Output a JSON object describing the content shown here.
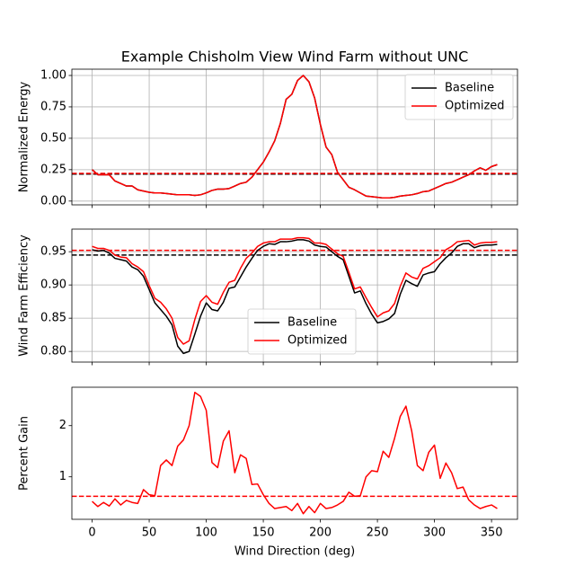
{
  "chart_data": [
    {
      "type": "line",
      "title": "Example Chisholm View Wind Farm without UNC",
      "y_label": "Normalized Energy",
      "x": [
        0,
        5,
        10,
        15,
        20,
        25,
        30,
        35,
        40,
        45,
        50,
        55,
        60,
        65,
        70,
        75,
        80,
        85,
        90,
        95,
        100,
        105,
        110,
        115,
        120,
        125,
        130,
        135,
        140,
        145,
        150,
        155,
        160,
        165,
        170,
        175,
        180,
        185,
        190,
        195,
        200,
        205,
        210,
        215,
        220,
        225,
        230,
        235,
        240,
        245,
        250,
        255,
        260,
        265,
        270,
        275,
        280,
        285,
        290,
        295,
        300,
        305,
        310,
        315,
        320,
        325,
        330,
        335,
        340,
        345,
        350,
        355
      ],
      "series": [
        {
          "name": "Baseline",
          "color": "#000000",
          "values": [
            0.25,
            0.21,
            0.21,
            0.21,
            0.16,
            0.14,
            0.12,
            0.12,
            0.09,
            0.08,
            0.07,
            0.065,
            0.065,
            0.06,
            0.055,
            0.05,
            0.05,
            0.05,
            0.045,
            0.05,
            0.065,
            0.085,
            0.095,
            0.095,
            0.1,
            0.12,
            0.14,
            0.15,
            0.19,
            0.25,
            0.31,
            0.39,
            0.48,
            0.62,
            0.81,
            0.85,
            0.96,
            1.0,
            0.95,
            0.82,
            0.61,
            0.43,
            0.37,
            0.23,
            0.17,
            0.11,
            0.09,
            0.065,
            0.04,
            0.035,
            0.03,
            0.025,
            0.025,
            0.03,
            0.04,
            0.045,
            0.05,
            0.06,
            0.075,
            0.08,
            0.1,
            0.12,
            0.14,
            0.15,
            0.17,
            0.19,
            0.21,
            0.24,
            0.265,
            0.245,
            0.275,
            0.29
          ]
        },
        {
          "name": "Optimized",
          "color": "#ff0000",
          "values": [
            0.25,
            0.21,
            0.21,
            0.21,
            0.16,
            0.14,
            0.12,
            0.12,
            0.09,
            0.08,
            0.07,
            0.065,
            0.065,
            0.06,
            0.055,
            0.05,
            0.05,
            0.05,
            0.045,
            0.05,
            0.065,
            0.085,
            0.095,
            0.095,
            0.1,
            0.12,
            0.14,
            0.15,
            0.19,
            0.25,
            0.31,
            0.39,
            0.48,
            0.62,
            0.81,
            0.85,
            0.96,
            1.0,
            0.95,
            0.82,
            0.61,
            0.43,
            0.37,
            0.23,
            0.17,
            0.11,
            0.09,
            0.065,
            0.04,
            0.035,
            0.03,
            0.025,
            0.025,
            0.03,
            0.04,
            0.045,
            0.05,
            0.06,
            0.075,
            0.08,
            0.1,
            0.12,
            0.14,
            0.15,
            0.17,
            0.19,
            0.21,
            0.24,
            0.265,
            0.245,
            0.275,
            0.29
          ]
        }
      ],
      "hlines": [
        {
          "value": 0.215,
          "color": "#000000"
        },
        {
          "value": 0.22,
          "color": "#ff0000"
        }
      ],
      "xlim": [
        -17.75,
        372.75
      ],
      "xticks": [
        0,
        50,
        100,
        150,
        200,
        250,
        300,
        350
      ],
      "show_xtick_labels": false,
      "ylim": [
        -0.03,
        1.05
      ],
      "yticks": [
        {
          "value": 0,
          "label": "0.00"
        },
        0.25,
        {
          "value": 0.5,
          "label": "0.50"
        },
        0.75,
        {
          "value": 1,
          "label": "1.00"
        }
      ],
      "grid": true,
      "legend": "upper right"
    },
    {
      "type": "line",
      "y_label": "Wind Farm Efficiency",
      "x": [
        0,
        5,
        10,
        15,
        20,
        25,
        30,
        35,
        40,
        45,
        50,
        55,
        60,
        65,
        70,
        75,
        80,
        85,
        90,
        95,
        100,
        105,
        110,
        115,
        120,
        125,
        130,
        135,
        140,
        145,
        150,
        155,
        160,
        165,
        170,
        175,
        180,
        185,
        190,
        195,
        200,
        205,
        210,
        215,
        220,
        225,
        230,
        235,
        240,
        245,
        250,
        255,
        260,
        265,
        270,
        275,
        280,
        285,
        290,
        295,
        300,
        305,
        310,
        315,
        320,
        325,
        330,
        335,
        340,
        345,
        350,
        355
      ],
      "series": [
        {
          "name": "Baseline",
          "color": "#000000",
          "values": [
            0.953,
            0.951,
            0.952,
            0.948,
            0.94,
            0.938,
            0.936,
            0.927,
            0.923,
            0.913,
            0.893,
            0.873,
            0.863,
            0.853,
            0.84,
            0.808,
            0.797,
            0.8,
            0.826,
            0.853,
            0.873,
            0.863,
            0.861,
            0.874,
            0.895,
            0.897,
            0.912,
            0.927,
            0.94,
            0.952,
            0.958,
            0.962,
            0.961,
            0.965,
            0.965,
            0.966,
            0.968,
            0.968,
            0.966,
            0.96,
            0.958,
            0.957,
            0.95,
            0.943,
            0.938,
            0.913,
            0.888,
            0.891,
            0.872,
            0.856,
            0.843,
            0.845,
            0.849,
            0.857,
            0.886,
            0.907,
            0.902,
            0.898,
            0.915,
            0.918,
            0.92,
            0.932,
            0.941,
            0.948,
            0.958,
            0.962,
            0.962,
            0.956,
            0.959,
            0.96,
            0.96,
            0.961
          ]
        },
        {
          "name": "Optimized",
          "color": "#ff0000",
          "values": [
            0.958,
            0.955,
            0.955,
            0.952,
            0.945,
            0.942,
            0.941,
            0.932,
            0.927,
            0.92,
            0.899,
            0.88,
            0.874,
            0.864,
            0.85,
            0.821,
            0.811,
            0.816,
            0.848,
            0.875,
            0.884,
            0.874,
            0.871,
            0.889,
            0.904,
            0.907,
            0.925,
            0.94,
            0.948,
            0.958,
            0.963,
            0.965,
            0.965,
            0.969,
            0.969,
            0.969,
            0.971,
            0.971,
            0.97,
            0.963,
            0.963,
            0.961,
            0.954,
            0.947,
            0.943,
            0.919,
            0.894,
            0.897,
            0.881,
            0.866,
            0.852,
            0.858,
            0.861,
            0.872,
            0.898,
            0.918,
            0.912,
            0.909,
            0.925,
            0.929,
            0.935,
            0.941,
            0.953,
            0.958,
            0.965,
            0.966,
            0.967,
            0.96,
            0.963,
            0.964,
            0.964,
            0.965
          ]
        }
      ],
      "hlines": [
        {
          "value": 0.945,
          "color": "#000000"
        },
        {
          "value": 0.952,
          "color": "#ff0000"
        }
      ],
      "xlim": [
        -17.75,
        372.75
      ],
      "xticks": [
        0,
        50,
        100,
        150,
        200,
        250,
        300,
        350
      ],
      "show_xtick_labels": false,
      "ylim": [
        0.784,
        0.984
      ],
      "yticks": [
        {
          "value": 0.8,
          "label": "0.80"
        },
        0.85,
        {
          "value": 0.9,
          "label": "0.90"
        },
        0.95
      ],
      "grid": true,
      "legend": "lower center"
    },
    {
      "type": "line",
      "y_label": "Percent Gain",
      "x_label": "Wind Direction (deg)",
      "x": [
        0,
        5,
        10,
        15,
        20,
        25,
        30,
        35,
        40,
        45,
        50,
        55,
        60,
        65,
        70,
        75,
        80,
        85,
        90,
        95,
        100,
        105,
        110,
        115,
        120,
        125,
        130,
        135,
        140,
        145,
        150,
        155,
        160,
        165,
        170,
        175,
        180,
        185,
        190,
        195,
        200,
        205,
        210,
        215,
        220,
        225,
        230,
        235,
        240,
        245,
        250,
        255,
        260,
        265,
        270,
        275,
        280,
        285,
        290,
        295,
        300,
        305,
        310,
        315,
        320,
        325,
        330,
        335,
        340,
        345,
        350,
        355
      ],
      "series": [
        {
          "color": "#ff0000",
          "values": [
            0.52,
            0.42,
            0.5,
            0.43,
            0.57,
            0.45,
            0.54,
            0.5,
            0.48,
            0.75,
            0.65,
            0.63,
            1.22,
            1.33,
            1.22,
            1.6,
            1.72,
            2.0,
            2.65,
            2.57,
            2.3,
            1.28,
            1.18,
            1.7,
            1.9,
            1.08,
            1.43,
            1.36,
            0.85,
            0.86,
            0.65,
            0.48,
            0.38,
            0.4,
            0.42,
            0.34,
            0.48,
            0.28,
            0.42,
            0.3,
            0.48,
            0.38,
            0.4,
            0.45,
            0.52,
            0.7,
            0.62,
            0.63,
            1.0,
            1.12,
            1.1,
            1.5,
            1.38,
            1.75,
            2.18,
            2.38,
            1.9,
            1.22,
            1.12,
            1.48,
            1.62,
            0.97,
            1.27,
            1.08,
            0.77,
            0.8,
            0.55,
            0.45,
            0.38,
            0.42,
            0.45,
            0.38
          ]
        }
      ],
      "hlines": [
        {
          "value": 0.62,
          "color": "#ff0000"
        }
      ],
      "xlim": [
        -17.75,
        372.75
      ],
      "xticks": [
        0,
        50,
        100,
        150,
        200,
        250,
        300,
        350
      ],
      "show_xtick_labels": true,
      "ylim": [
        0.17,
        2.75
      ],
      "yticks": [
        1,
        2
      ],
      "grid": false
    }
  ]
}
